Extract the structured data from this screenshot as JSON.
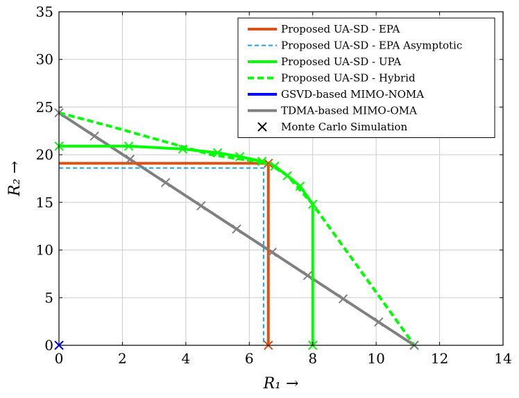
{
  "chart_data": {
    "type": "line",
    "xlabel": "R₁ →",
    "ylabel": "R₂ →",
    "xlim": [
      0,
      14
    ],
    "ylim": [
      0,
      35
    ],
    "xticks": [
      0,
      2,
      4,
      6,
      8,
      10,
      12,
      14
    ],
    "yticks": [
      0,
      5,
      10,
      15,
      20,
      25,
      30,
      35
    ],
    "grid": true,
    "legend_position": "top-right",
    "series": [
      {
        "name": "Proposed UA-SD - EPA",
        "color": "#d95319",
        "dash": "solid",
        "x": [
          0,
          6.6,
          6.6
        ],
        "y": [
          19.1,
          19.1,
          0
        ]
      },
      {
        "name": "Proposed UA-SD - EPA Asymptotic",
        "color": "#1ba1e2",
        "dash": "dashed",
        "x": [
          0,
          6.45,
          6.45
        ],
        "y": [
          18.6,
          18.6,
          0
        ]
      },
      {
        "name": "Proposed UA-SD - UPA",
        "color": "#00ff00",
        "dash": "solid",
        "x": [
          0,
          2.2,
          3.9,
          5.0,
          5.7,
          6.4,
          6.8,
          7.2,
          7.6,
          8.0,
          8.0
        ],
        "y": [
          20.9,
          20.9,
          20.6,
          20.2,
          19.8,
          19.3,
          18.8,
          17.8,
          16.7,
          14.8,
          0
        ]
      },
      {
        "name": "Proposed UA-SD - Hybrid",
        "color": "#00ff00",
        "dash": "dotted",
        "x": [
          0,
          1.6,
          3.2,
          4.8,
          6.6,
          7.2,
          8.0,
          9.3,
          10.6,
          11.2
        ],
        "y": [
          24.4,
          23.0,
          21.5,
          20.0,
          19.1,
          17.8,
          14.8,
          8.8,
          2.8,
          0
        ]
      },
      {
        "name": "GSVD-based MIMO-NOMA",
        "color": "#0000ff",
        "dash": "solid",
        "x": [
          0
        ],
        "y": [
          0
        ]
      },
      {
        "name": "TDMA-based MIMO-OMA",
        "color": "#808080",
        "dash": "solid",
        "x": [
          0,
          11.2
        ],
        "y": [
          24.4,
          0
        ]
      }
    ],
    "markers": [
      {
        "name": "Monte Carlo Simulation",
        "groups": [
          {
            "color": "#d95319",
            "x": [
              6.6,
              6.6
            ],
            "y": [
              19.1,
              0
            ]
          },
          {
            "color": "#00ff00",
            "x": [
              0,
              2.2,
              3.9,
              5.0,
              5.7,
              6.4,
              6.8,
              7.2,
              7.6,
              8.0,
              8.0,
              11.2
            ],
            "y": [
              20.9,
              20.9,
              20.6,
              20.2,
              19.8,
              19.3,
              18.8,
              17.8,
              16.7,
              14.8,
              0,
              0
            ]
          },
          {
            "color": "#0000ff",
            "x": [
              0
            ],
            "y": [
              0
            ]
          },
          {
            "color": "#808080",
            "x": [
              0,
              1.12,
              2.24,
              3.36,
              4.48,
              5.6,
              6.72,
              7.84,
              8.96,
              10.08,
              11.2
            ],
            "y": [
              24.4,
              21.96,
              19.52,
              17.08,
              14.64,
              12.2,
              9.76,
              7.32,
              4.88,
              2.44,
              0
            ]
          }
        ]
      }
    ]
  }
}
